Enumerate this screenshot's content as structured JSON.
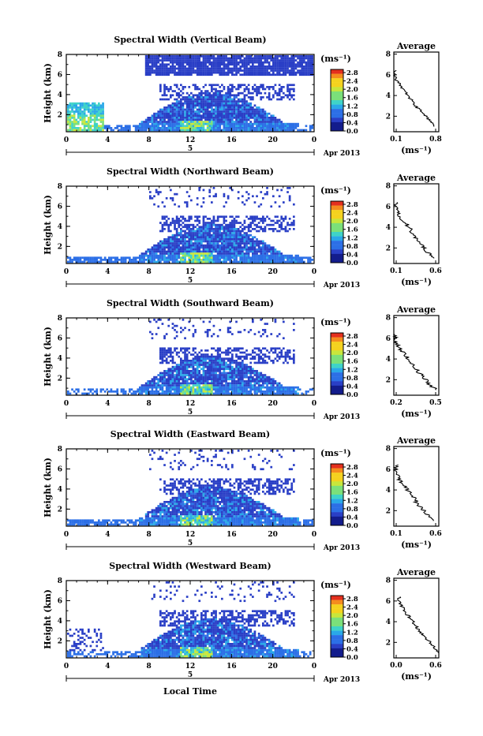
{
  "palette": [
    "#131c8c",
    "#2a3fc6",
    "#2c6fe6",
    "#2aa8e8",
    "#3fd3c8",
    "#7be07a",
    "#c8e63c",
    "#f5d21e",
    "#f58c1e",
    "#e4301e"
  ],
  "colorbar": {
    "unit": "(ms⁻¹)",
    "ticks": [
      "2.8",
      "2.4",
      "2.0",
      "1.6",
      "1.2",
      "0.8",
      "0.4",
      "0.0"
    ],
    "range": [
      0,
      2.8
    ]
  },
  "x_axis": {
    "ticks": [
      "0",
      "4",
      "8",
      "12",
      "16",
      "20",
      "0"
    ],
    "range_hours": [
      0,
      24
    ],
    "date_day": "5",
    "date_month": "Apr 2013",
    "xlabel": "Local Time"
  },
  "y_axis": {
    "ylabel": "Height (km)",
    "ticks": [
      "2",
      "4",
      "6",
      "8"
    ],
    "range_km": [
      0.3,
      8.0
    ]
  },
  "avg_axis": {
    "title": "Average",
    "xlabel": "(ms⁻¹)",
    "yticks": [
      "2",
      "4",
      "6",
      "8"
    ]
  },
  "chart_data": [
    {
      "type": "heatmap",
      "title": "Spectral Width (Vertical Beam)",
      "avg_xticks": [
        "0.1",
        "0.8"
      ],
      "avg_xlim": [
        0.1,
        0.8
      ],
      "average_profile": {
        "height_km": [
          1.0,
          1.5,
          2.0,
          2.5,
          3.0,
          3.5,
          4.0,
          4.5,
          5.0,
          5.5,
          6.0,
          6.5
        ],
        "width_ms": [
          0.74,
          0.68,
          0.6,
          0.52,
          0.44,
          0.38,
          0.32,
          0.26,
          0.2,
          0.14,
          0.1,
          0.12
        ]
      }
    },
    {
      "type": "heatmap",
      "title": "Spectral Width (Northward Beam)",
      "avg_xticks": [
        "0.1",
        "0.6"
      ],
      "avg_xlim": [
        0.1,
        0.6
      ],
      "average_profile": {
        "height_km": [
          1.0,
          1.5,
          2.0,
          2.5,
          3.0,
          3.5,
          4.0,
          4.5,
          5.0,
          5.5,
          6.0,
          6.5
        ],
        "width_ms": [
          0.56,
          0.48,
          0.44,
          0.38,
          0.34,
          0.3,
          0.27,
          0.22,
          0.17,
          0.14,
          0.12,
          0.13
        ]
      }
    },
    {
      "type": "heatmap",
      "title": "Spectral Width (Southward Beam)",
      "avg_xticks": [
        "0.2",
        "0.5"
      ],
      "avg_xlim": [
        0.1,
        0.6
      ],
      "average_profile": {
        "height_km": [
          1.0,
          1.5,
          2.0,
          2.5,
          3.0,
          3.5,
          4.0,
          4.5,
          5.0,
          5.5,
          6.0,
          6.5
        ],
        "width_ms": [
          0.58,
          0.5,
          0.46,
          0.4,
          0.35,
          0.3,
          0.26,
          0.22,
          0.17,
          0.13,
          0.11,
          0.12
        ]
      }
    },
    {
      "type": "heatmap",
      "title": "Spectral Width (Eastward Beam)",
      "avg_xticks": [
        "0.1",
        "0.6"
      ],
      "avg_xlim": [
        0.1,
        0.6
      ],
      "average_profile": {
        "height_km": [
          1.0,
          1.5,
          2.0,
          2.5,
          3.0,
          3.5,
          4.0,
          4.5,
          5.0,
          5.5,
          6.0,
          6.5
        ],
        "width_ms": [
          0.55,
          0.48,
          0.44,
          0.37,
          0.34,
          0.3,
          0.25,
          0.21,
          0.16,
          0.13,
          0.12,
          0.13
        ]
      }
    },
    {
      "type": "heatmap",
      "title": "Spectral Width (Westward Beam)",
      "avg_xticks": [
        "0.0",
        "0.6"
      ],
      "avg_xlim": [
        0.0,
        0.6
      ],
      "average_profile": {
        "height_km": [
          1.0,
          1.5,
          2.0,
          2.5,
          3.0,
          3.5,
          4.0,
          4.5,
          5.0,
          5.5,
          6.0,
          6.5
        ],
        "width_ms": [
          0.6,
          0.54,
          0.48,
          0.42,
          0.36,
          0.3,
          0.25,
          0.2,
          0.15,
          0.1,
          0.07,
          0.08
        ]
      }
    }
  ]
}
